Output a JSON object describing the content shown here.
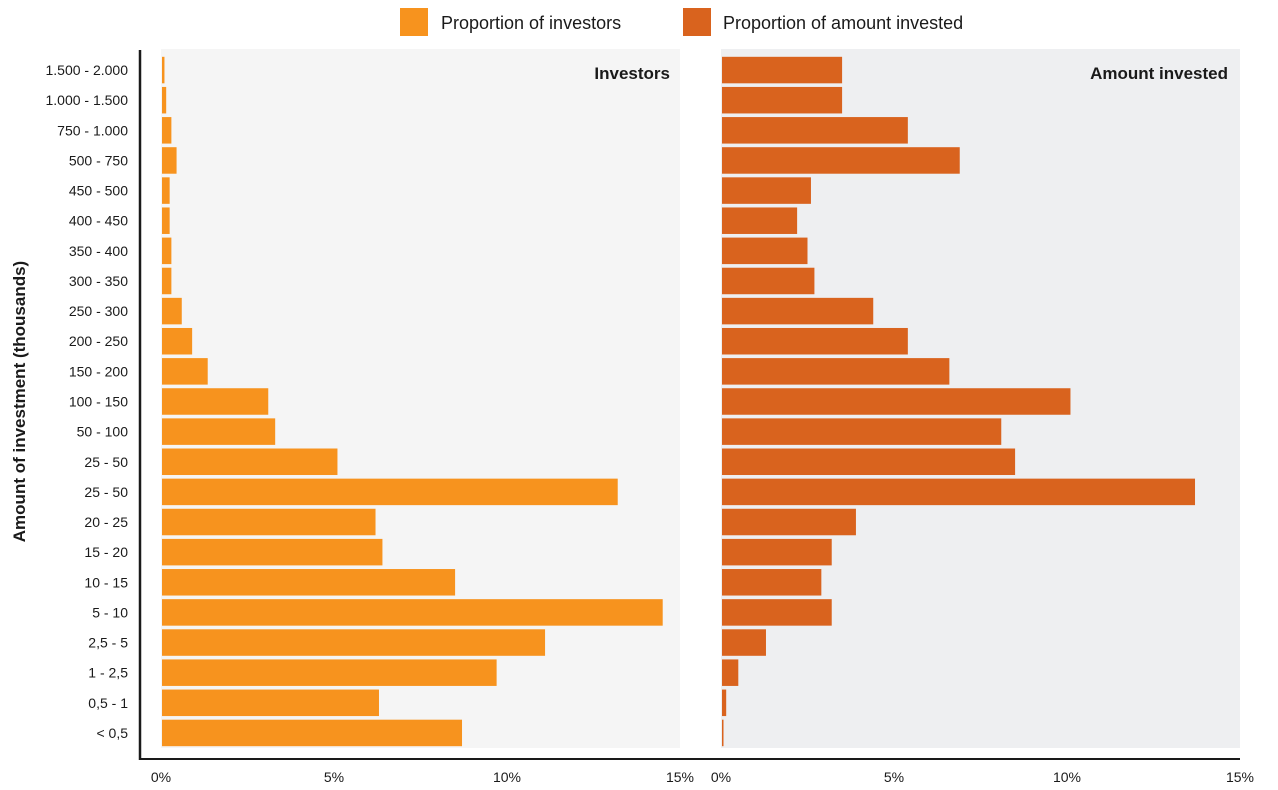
{
  "chart_data": {
    "type": "bar",
    "orientation": "horizontal",
    "ylabel": "Amount of investment (thousands)",
    "categories": [
      "1.500 - 2.000",
      "1.000 - 1.500",
      "750 - 1.000",
      "500 - 750",
      "450 - 500",
      "400 - 450",
      "350 - 400",
      "300 - 350",
      "250 - 300",
      "200 - 250",
      "150 - 200",
      "100 - 150",
      "50 - 100",
      "25 - 50",
      "25 - 50",
      "20 - 25",
      "15 - 20",
      "10 - 15",
      "5 - 10",
      "2,5 - 5",
      "1 - 2,5",
      "0,5 - 1",
      "< 0,5"
    ],
    "xlim": [
      0,
      15
    ],
    "x_ticks": [
      "0%",
      "5%",
      "10%",
      "15%"
    ],
    "x_tick_values": [
      0,
      5,
      10,
      15
    ],
    "legend_position": "top-center",
    "grid": false,
    "series": [
      {
        "name": "Proportion of investors",
        "panel_title": "Investors",
        "color": "#f7931e",
        "values": [
          0.1,
          0.15,
          0.3,
          0.45,
          0.25,
          0.25,
          0.3,
          0.3,
          0.6,
          0.9,
          1.35,
          3.1,
          3.3,
          5.1,
          13.2,
          6.2,
          6.4,
          8.5,
          14.5,
          11.1,
          9.7,
          6.3,
          8.7
        ]
      },
      {
        "name": "Proportion of amount invested",
        "panel_title": "Amount invested",
        "color": "#d9631e",
        "values": [
          3.5,
          3.5,
          5.4,
          6.9,
          2.6,
          2.2,
          2.5,
          2.7,
          4.4,
          5.4,
          6.6,
          10.1,
          8.1,
          8.5,
          13.7,
          3.9,
          3.2,
          2.9,
          3.2,
          1.3,
          0.5,
          0.15,
          0.05
        ]
      }
    ]
  }
}
